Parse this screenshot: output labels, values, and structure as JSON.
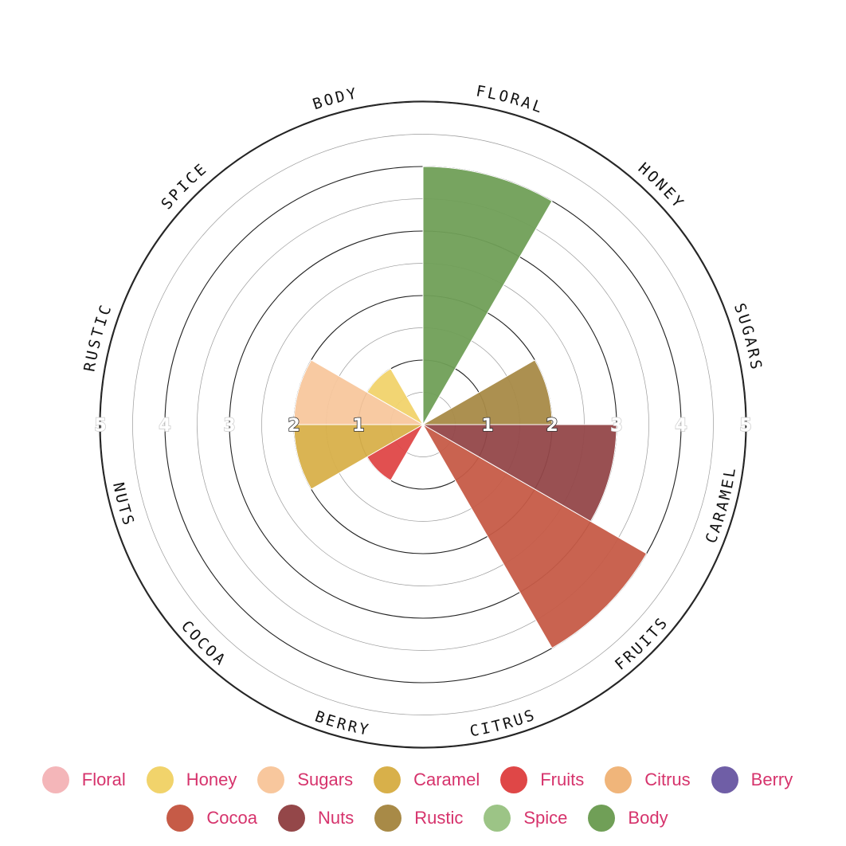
{
  "chart_data": {
    "type": "polar-bar",
    "title": "",
    "r_max": 5,
    "tick_labels": [
      "1",
      "2",
      "3",
      "4",
      "5"
    ],
    "categories": [
      "FLORAL",
      "HONEY",
      "SUGARS",
      "CARAMEL",
      "FRUITS",
      "CITRUS",
      "BERRY",
      "COCOA",
      "NUTS",
      "RUSTIC",
      "SPICE",
      "BODY"
    ],
    "series": [
      {
        "key": "floral",
        "label": "Floral",
        "value": 0,
        "color": "#f4b6b9"
      },
      {
        "key": "honey",
        "label": "Honey",
        "value": 1,
        "color": "#f1d36b"
      },
      {
        "key": "sugars",
        "label": "Sugars",
        "value": 2,
        "color": "#f8c79d"
      },
      {
        "key": "caramel",
        "label": "Caramel",
        "value": 2,
        "color": "#d8b04a"
      },
      {
        "key": "fruits",
        "label": "Fruits",
        "value": 1,
        "color": "#df4747"
      },
      {
        "key": "citrus",
        "label": "Citrus",
        "value": 0,
        "color": "#f0b57a"
      },
      {
        "key": "berry",
        "label": "Berry",
        "value": 0,
        "color": "#6f5ea6"
      },
      {
        "key": "cocoa",
        "label": "Cocoa",
        "value": 4,
        "color": "#c65b47"
      },
      {
        "key": "nuts",
        "label": "Nuts",
        "value": 3,
        "color": "#944749"
      },
      {
        "key": "rustic",
        "label": "Rustic",
        "value": 2,
        "color": "#a88a47"
      },
      {
        "key": "spice",
        "label": "Spice",
        "value": 0,
        "color": "#9cc486"
      },
      {
        "key": "body",
        "label": "Body",
        "value": 4,
        "color": "#709f57"
      }
    ],
    "legend_position": "bottom"
  }
}
